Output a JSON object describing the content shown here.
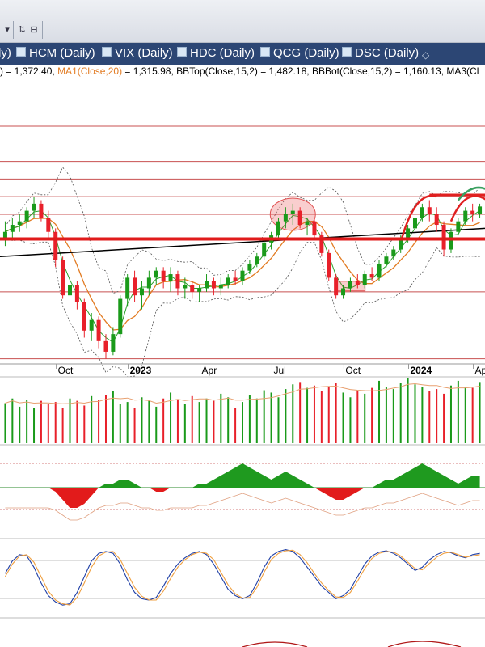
{
  "toolbar": {
    "icons": [
      "toolbar-sort-icon",
      "toolbar-sell-icon"
    ]
  },
  "tabs": [
    {
      "label": "ly)"
    },
    {
      "label": "HCM (Daily)"
    },
    {
      "label": "VIX (Daily)"
    },
    {
      "label": "HDC (Daily)"
    },
    {
      "label": "QCG (Daily)"
    },
    {
      "label": "DSC (Daily)"
    },
    {
      "label": "◇"
    }
  ],
  "indicators": {
    "close_text": ") = 1,372.40, ",
    "ma1_text": "MA1(Close,20)",
    "ma1_value": " = 1,315.98, ",
    "bbtop_text": "BBTop(Close,15,2) = 1,482.18, ",
    "bbbot_text": "BBBot(Close,15,2) = 1,160.13, ",
    "ma3_text": "MA3(Cl"
  },
  "colors": {
    "up": "#1a9a1a",
    "down": "#e8202a",
    "ma_orange": "#e27b22",
    "ma_green": "#2ca02c",
    "ma_black": "#000000",
    "band": "#555555",
    "tab_bg": "#2c4674"
  },
  "chart_data": [
    {
      "type": "candlestick",
      "panel": "price",
      "x_axis_labels": [
        "Oct",
        "2023",
        "Apr",
        "Jul",
        "Oct",
        "2024",
        "Apr"
      ],
      "x_axis_bold": [
        "2023",
        "2024"
      ],
      "y_range": [
        930,
        1600
      ],
      "horizontal_levels": [
        1600,
        1500,
        1450,
        1400,
        1350,
        1130,
        940
      ],
      "key_level": 1280,
      "candles_weekly_ohlc": [
        [
          1280,
          1330,
          1260,
          1300
        ],
        [
          1300,
          1340,
          1280,
          1320
        ],
        [
          1320,
          1350,
          1300,
          1330
        ],
        [
          1330,
          1370,
          1310,
          1360
        ],
        [
          1360,
          1400,
          1340,
          1380
        ],
        [
          1380,
          1390,
          1330,
          1340
        ],
        [
          1340,
          1360,
          1280,
          1300
        ],
        [
          1300,
          1310,
          1200,
          1220
        ],
        [
          1220,
          1230,
          1110,
          1120
        ],
        [
          1120,
          1170,
          1090,
          1150
        ],
        [
          1150,
          1160,
          1080,
          1100
        ],
        [
          1100,
          1110,
          1000,
          1020
        ],
        [
          1020,
          1070,
          990,
          1050
        ],
        [
          1050,
          1060,
          970,
          990
        ],
        [
          990,
          1010,
          940,
          960
        ],
        [
          960,
          1030,
          950,
          1010
        ],
        [
          1010,
          1120,
          1000,
          1110
        ],
        [
          1110,
          1180,
          1090,
          1170
        ],
        [
          1170,
          1190,
          1100,
          1120
        ],
        [
          1120,
          1160,
          1080,
          1140
        ],
        [
          1140,
          1190,
          1120,
          1170
        ],
        [
          1170,
          1200,
          1150,
          1190
        ],
        [
          1190,
          1200,
          1140,
          1160
        ],
        [
          1160,
          1200,
          1130,
          1180
        ],
        [
          1180,
          1190,
          1120,
          1140
        ],
        [
          1140,
          1170,
          1110,
          1150
        ],
        [
          1150,
          1160,
          1110,
          1130
        ],
        [
          1130,
          1150,
          1100,
          1140
        ],
        [
          1140,
          1180,
          1130,
          1160
        ],
        [
          1160,
          1170,
          1120,
          1140
        ],
        [
          1140,
          1170,
          1120,
          1150
        ],
        [
          1150,
          1180,
          1140,
          1170
        ],
        [
          1170,
          1190,
          1150,
          1160
        ],
        [
          1160,
          1200,
          1150,
          1190
        ],
        [
          1190,
          1220,
          1180,
          1210
        ],
        [
          1210,
          1240,
          1200,
          1230
        ],
        [
          1230,
          1280,
          1220,
          1270
        ],
        [
          1270,
          1300,
          1250,
          1290
        ],
        [
          1290,
          1340,
          1280,
          1330
        ],
        [
          1330,
          1370,
          1310,
          1350
        ],
        [
          1350,
          1380,
          1320,
          1360
        ],
        [
          1360,
          1370,
          1310,
          1320
        ],
        [
          1320,
          1340,
          1290,
          1330
        ],
        [
          1330,
          1340,
          1280,
          1290
        ],
        [
          1290,
          1300,
          1230,
          1240
        ],
        [
          1240,
          1250,
          1160,
          1170
        ],
        [
          1170,
          1180,
          1110,
          1120
        ],
        [
          1120,
          1150,
          1110,
          1140
        ],
        [
          1140,
          1170,
          1130,
          1160
        ],
        [
          1160,
          1180,
          1140,
          1150
        ],
        [
          1150,
          1190,
          1140,
          1180
        ],
        [
          1180,
          1200,
          1160,
          1170
        ],
        [
          1170,
          1220,
          1160,
          1210
        ],
        [
          1210,
          1240,
          1200,
          1230
        ],
        [
          1230,
          1260,
          1220,
          1250
        ],
        [
          1250,
          1290,
          1240,
          1280
        ],
        [
          1280,
          1320,
          1270,
          1310
        ],
        [
          1310,
          1350,
          1300,
          1340
        ],
        [
          1340,
          1380,
          1330,
          1370
        ],
        [
          1370,
          1390,
          1330,
          1350
        ],
        [
          1350,
          1370,
          1300,
          1320
        ],
        [
          1320,
          1330,
          1230,
          1250
        ],
        [
          1250,
          1310,
          1240,
          1300
        ],
        [
          1300,
          1340,
          1290,
          1330
        ],
        [
          1330,
          1370,
          1320,
          1360
        ],
        [
          1360,
          1380,
          1330,
          1350
        ],
        [
          1350,
          1380,
          1340,
          1372
        ]
      ]
    },
    {
      "type": "bar",
      "panel": "volume",
      "values": [
        34,
        38,
        31,
        37,
        30,
        36,
        33,
        35,
        30,
        38,
        36,
        32,
        40,
        37,
        41,
        44,
        33,
        35,
        30,
        39,
        36,
        31,
        38,
        43,
        37,
        33,
        40,
        35,
        38,
        36,
        42,
        39,
        30,
        35,
        41,
        38,
        45,
        43,
        39,
        46,
        50,
        52,
        47,
        49,
        44,
        48,
        51,
        43,
        39,
        45,
        42,
        47,
        53,
        48,
        46,
        51,
        55,
        50,
        48,
        44,
        46,
        42,
        49,
        53,
        48,
        47,
        52
      ]
    },
    {
      "type": "area",
      "panel": "macd_histogram",
      "zero_level": 0,
      "values": [
        0,
        0,
        0,
        0,
        0,
        0,
        0,
        -1,
        -3,
        -5,
        -5,
        -4,
        -2,
        0,
        1,
        1,
        2,
        2,
        1,
        0,
        0,
        -1,
        -1,
        0,
        0,
        0,
        0,
        1,
        1,
        2,
        3,
        4,
        5,
        6,
        5,
        4,
        3,
        2,
        3,
        4,
        3,
        2,
        1,
        0,
        -1,
        -2,
        -3,
        -3,
        -2,
        -1,
        0,
        0,
        1,
        2,
        2,
        3,
        4,
        5,
        6,
        5,
        4,
        3,
        2,
        1,
        2,
        3,
        3
      ]
    },
    {
      "type": "line",
      "panel": "stochastic",
      "y_range": [
        0,
        100
      ],
      "series": [
        {
          "name": "",
          "color": "#1f3fa6",
          "values": [
            60,
            80,
            90,
            88,
            70,
            45,
            25,
            15,
            10,
            12,
            30,
            55,
            80,
            92,
            95,
            92,
            75,
            50,
            30,
            20,
            18,
            22,
            40,
            60,
            75,
            85,
            92,
            95,
            90,
            75,
            55,
            35,
            25,
            20,
            25,
            45,
            70,
            88,
            95,
            98,
            95,
            85,
            70,
            55,
            40,
            30,
            20,
            25,
            35,
            55,
            75,
            88,
            94,
            96,
            92,
            85,
            75,
            65,
            70,
            82,
            90,
            95,
            93,
            88,
            85,
            90,
            92
          ]
        },
        {
          "name": "",
          "color": "#f0a040",
          "values": [
            55,
            75,
            88,
            90,
            78,
            55,
            32,
            18,
            12,
            10,
            22,
            45,
            70,
            88,
            94,
            95,
            82,
            60,
            38,
            24,
            18,
            18,
            32,
            52,
            70,
            82,
            90,
            94,
            92,
            82,
            62,
            42,
            28,
            21,
            22,
            38,
            62,
            82,
            92,
            96,
            97,
            90,
            77,
            60,
            45,
            33,
            23,
            22,
            30,
            48,
            68,
            84,
            92,
            95,
            94,
            88,
            78,
            68,
            66,
            76,
            86,
            92,
            94,
            90,
            86,
            88,
            90
          ]
        }
      ]
    }
  ]
}
